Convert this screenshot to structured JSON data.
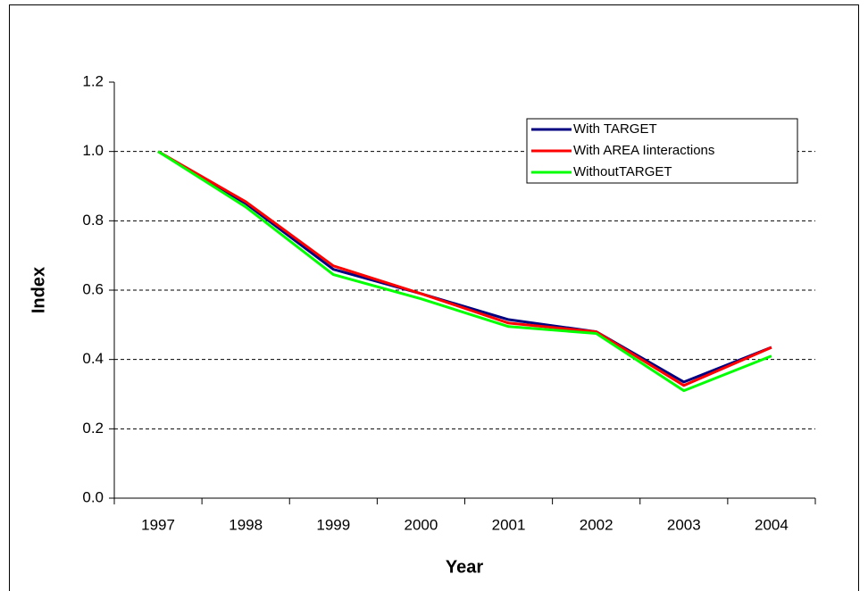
{
  "chart_data": {
    "type": "line",
    "xlabel": "Year",
    "ylabel": "Index",
    "categories": [
      "1997",
      "1998",
      "1999",
      "2000",
      "2001",
      "2002",
      "2003",
      "2004"
    ],
    "series": [
      {
        "name": "With TARGET",
        "color": "#000080",
        "values": [
          1.0,
          0.85,
          0.66,
          0.59,
          0.515,
          0.48,
          0.335,
          0.435
        ]
      },
      {
        "name": "With AREA Iinteractions",
        "color": "#ff0000",
        "values": [
          1.0,
          0.855,
          0.67,
          0.59,
          0.505,
          0.48,
          0.325,
          0.435
        ]
      },
      {
        "name": "WithoutTARGET",
        "color": "#00ff00",
        "values": [
          1.0,
          0.84,
          0.645,
          0.575,
          0.495,
          0.475,
          0.31,
          0.41
        ]
      }
    ],
    "ylim": [
      0,
      1.2
    ],
    "yticks": [
      {
        "value": 0,
        "label": "0.0"
      },
      0.2,
      0.4,
      0.6,
      0.8,
      {
        "value": 1,
        "label": "1.0"
      },
      1.2
    ],
    "grid": true,
    "legend": "upper right"
  }
}
